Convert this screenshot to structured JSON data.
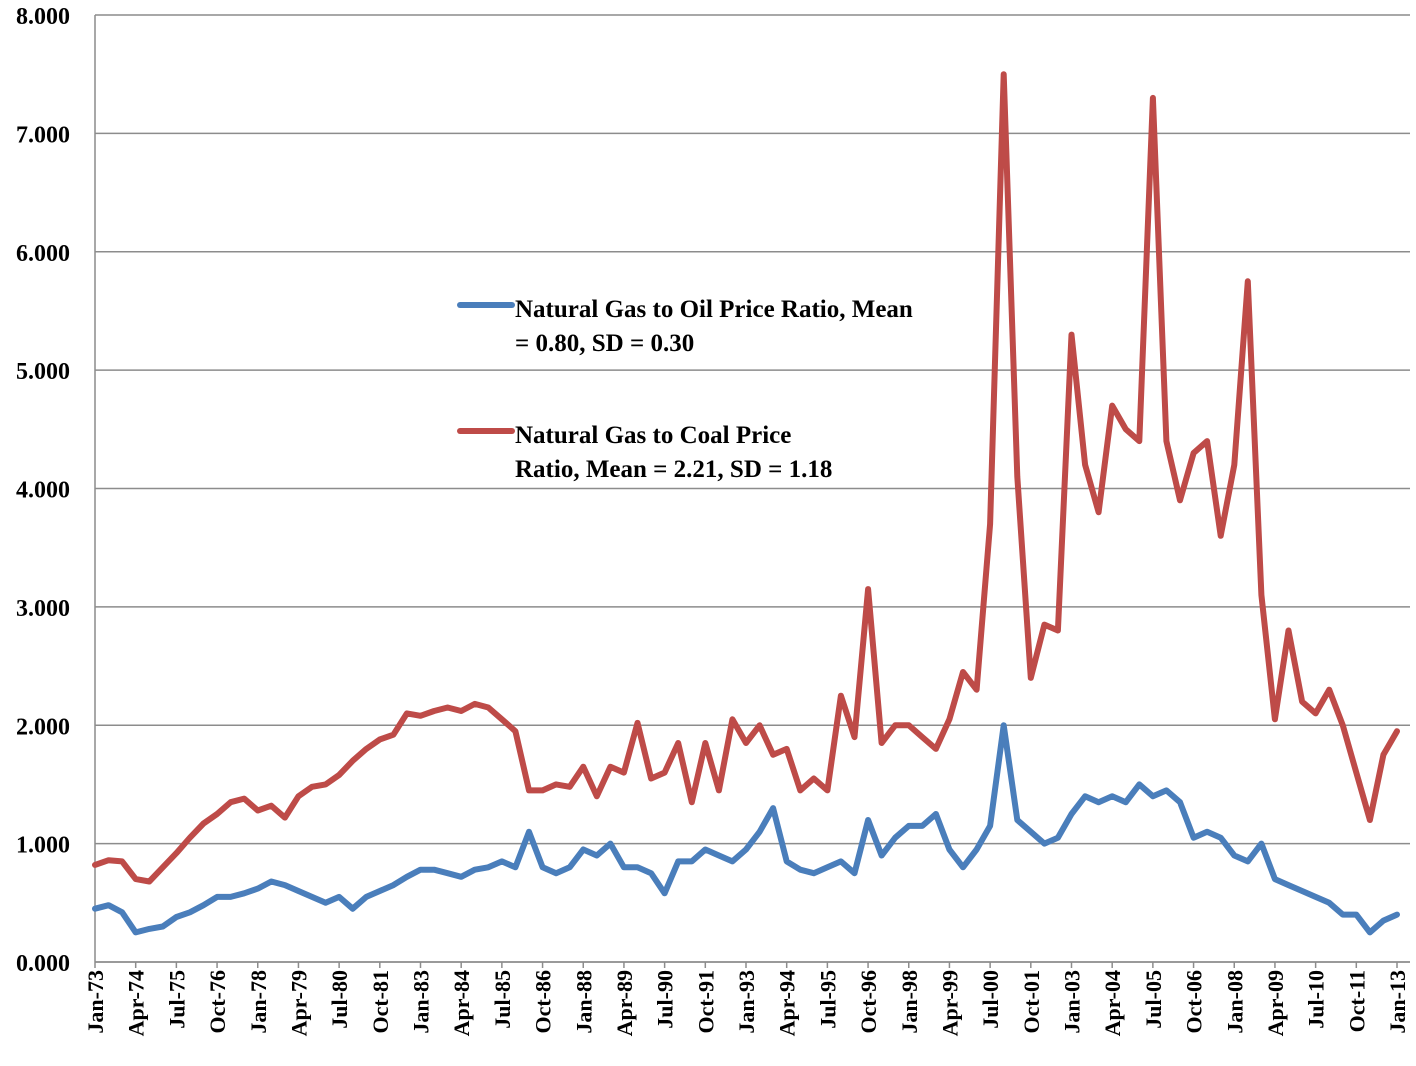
{
  "chart_data": {
    "type": "line",
    "categories": [
      "Jan-73",
      null,
      null,
      "Apr-74",
      null,
      null,
      "Jul-75",
      null,
      null,
      "Oct-76",
      null,
      null,
      "Jan-78",
      null,
      null,
      "Apr-79",
      null,
      null,
      "Jul-80",
      null,
      null,
      "Oct-81",
      null,
      null,
      "Jan-83",
      null,
      null,
      "Apr-84",
      null,
      null,
      "Jul-85",
      null,
      null,
      "Oct-86",
      null,
      null,
      "Jan-88",
      null,
      null,
      "Apr-89",
      null,
      null,
      "Jul-90",
      null,
      null,
      "Oct-91",
      null,
      null,
      "Jan-93",
      null,
      null,
      "Apr-94",
      null,
      null,
      "Jul-95",
      null,
      null,
      "Oct-96",
      null,
      null,
      "Jan-98",
      null,
      null,
      "Apr-99",
      null,
      null,
      "Jul-00",
      null,
      null,
      "Oct-01",
      null,
      null,
      "Jan-03",
      null,
      null,
      "Apr-04",
      null,
      null,
      "Jul-05",
      null,
      null,
      "Oct-06",
      null,
      null,
      "Jan-08",
      null,
      null,
      "Apr-09",
      null,
      null,
      "Jul-10",
      null,
      null,
      "Oct-11",
      null,
      null,
      "Jan-13"
    ],
    "series": [
      {
        "name": "Natural Gas to Oil Price Ratio, Mean = 0.80, SD = 0.30",
        "color": "#4a7ebb",
        "values": [
          0.45,
          0.48,
          0.42,
          0.25,
          0.28,
          0.3,
          0.38,
          0.42,
          0.48,
          0.55,
          0.55,
          0.58,
          0.62,
          0.68,
          0.65,
          0.6,
          0.55,
          0.5,
          0.55,
          0.45,
          0.55,
          0.6,
          0.65,
          0.72,
          0.78,
          0.78,
          0.75,
          0.72,
          0.78,
          0.8,
          0.85,
          0.8,
          1.1,
          0.8,
          0.75,
          0.8,
          0.95,
          0.9,
          1.0,
          0.8,
          0.8,
          0.75,
          0.58,
          0.85,
          0.85,
          0.95,
          0.9,
          0.85,
          0.95,
          1.1,
          1.3,
          0.85,
          0.78,
          0.75,
          0.8,
          0.85,
          0.75,
          1.2,
          0.9,
          1.05,
          1.15,
          1.15,
          1.25,
          0.95,
          0.8,
          0.95,
          1.15,
          2.0,
          1.2,
          1.1,
          1.0,
          1.05,
          1.25,
          1.4,
          1.35,
          1.4,
          1.35,
          1.5,
          1.4,
          1.45,
          1.35,
          1.05,
          1.1,
          1.05,
          0.9,
          0.85,
          1.0,
          0.7,
          0.65,
          0.6,
          0.55,
          0.5,
          0.4,
          0.4,
          0.25,
          0.35,
          0.4
        ]
      },
      {
        "name": "Natural Gas to Coal Price Ratio, Mean = 2.21, SD = 1.18",
        "color": "#be4b48",
        "values": [
          0.82,
          0.86,
          0.85,
          0.7,
          0.68,
          0.8,
          0.92,
          1.05,
          1.17,
          1.25,
          1.35,
          1.38,
          1.28,
          1.32,
          1.22,
          1.4,
          1.48,
          1.5,
          1.58,
          1.7,
          1.8,
          1.88,
          1.92,
          2.1,
          2.08,
          2.12,
          2.15,
          2.12,
          2.18,
          2.15,
          2.05,
          1.95,
          1.45,
          1.45,
          1.5,
          1.48,
          1.65,
          1.4,
          1.65,
          1.6,
          2.02,
          1.55,
          1.6,
          1.85,
          1.35,
          1.85,
          1.45,
          2.05,
          1.85,
          2.0,
          1.75,
          1.8,
          1.45,
          1.55,
          1.45,
          2.25,
          1.9,
          3.15,
          1.85,
          2.0,
          2.0,
          1.9,
          1.8,
          2.05,
          2.45,
          2.3,
          3.7,
          7.5,
          4.1,
          2.4,
          2.85,
          2.8,
          5.3,
          4.2,
          3.8,
          4.7,
          4.5,
          4.4,
          7.3,
          4.4,
          3.9,
          4.3,
          4.4,
          3.6,
          4.2,
          5.75,
          3.1,
          2.05,
          2.8,
          2.2,
          2.1,
          2.3,
          2.0,
          1.6,
          1.2,
          1.75,
          1.95
        ]
      }
    ],
    "ylim": [
      0,
      8
    ],
    "yticks": [
      {
        "value": 0,
        "label": "0.000"
      },
      {
        "value": 1,
        "label": "1.000"
      },
      {
        "value": 2,
        "label": "2.000"
      },
      {
        "value": 3,
        "label": "3.000"
      },
      {
        "value": 4,
        "label": "4.000"
      },
      {
        "value": 5,
        "label": "5.000"
      },
      {
        "value": 6,
        "label": "6.000"
      },
      {
        "value": 7,
        "label": "7.000"
      },
      {
        "value": 8,
        "label": "8.000"
      }
    ],
    "grid": true
  }
}
